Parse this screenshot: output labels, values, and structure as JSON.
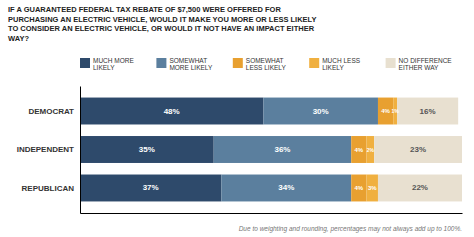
{
  "chart_data": {
    "type": "bar",
    "orientation": "horizontal",
    "stacked": true,
    "title": "IF A GUARANTEED FEDERAL TAX REBATE OF $7,500 WERE OFFERED FOR\nPURCHASING AN ELECTRIC VEHICLE, WOULD IT MAKE YOU MORE OR LESS LIKELY\nTO CONSIDER AN ELECTRIC VEHICLE, OR WOULD IT NOT HAVE AN IMPACT EITHER\nWAY?",
    "annotations": [
      "Due to weighting and rounding, percentages may not always add up to 100%."
    ],
    "categories": [
      "DEMOCRAT",
      "INDEPENDENT",
      "REPUBLICAN"
    ],
    "series": [
      {
        "name": "MUCH MORE\nLIKELY",
        "color": "#2e4a6b",
        "values": [
          48,
          35,
          37
        ],
        "value_labels": [
          "48%",
          "35%",
          "37%"
        ]
      },
      {
        "name": "SOMEWHAT\nMORE LIKELY",
        "color": "#5b7f9e",
        "values": [
          30,
          36,
          34
        ],
        "value_labels": [
          "30%",
          "36%",
          "34%"
        ]
      },
      {
        "name": "SOMEWHAT\nLESS LIKELY",
        "color": "#e8a030",
        "values": [
          4,
          4,
          4
        ],
        "value_labels": [
          "4%",
          "4%",
          "4%"
        ]
      },
      {
        "name": "MUCH LESS\nLIKELY",
        "color": "#f0b040",
        "values": [
          1,
          2,
          3
        ],
        "value_labels": [
          "1%",
          "2%",
          "3%"
        ]
      },
      {
        "name": "NO DIFFERENCE\nEITHER WAY",
        "color": "#e8e0d0",
        "values": [
          16,
          23,
          22
        ],
        "value_labels": [
          "16%",
          "23%",
          "22%"
        ]
      }
    ],
    "xlim": [
      0,
      100
    ],
    "xticks": [],
    "tick_labels": "y",
    "data_labels": true,
    "legend": "top",
    "grid": false
  }
}
